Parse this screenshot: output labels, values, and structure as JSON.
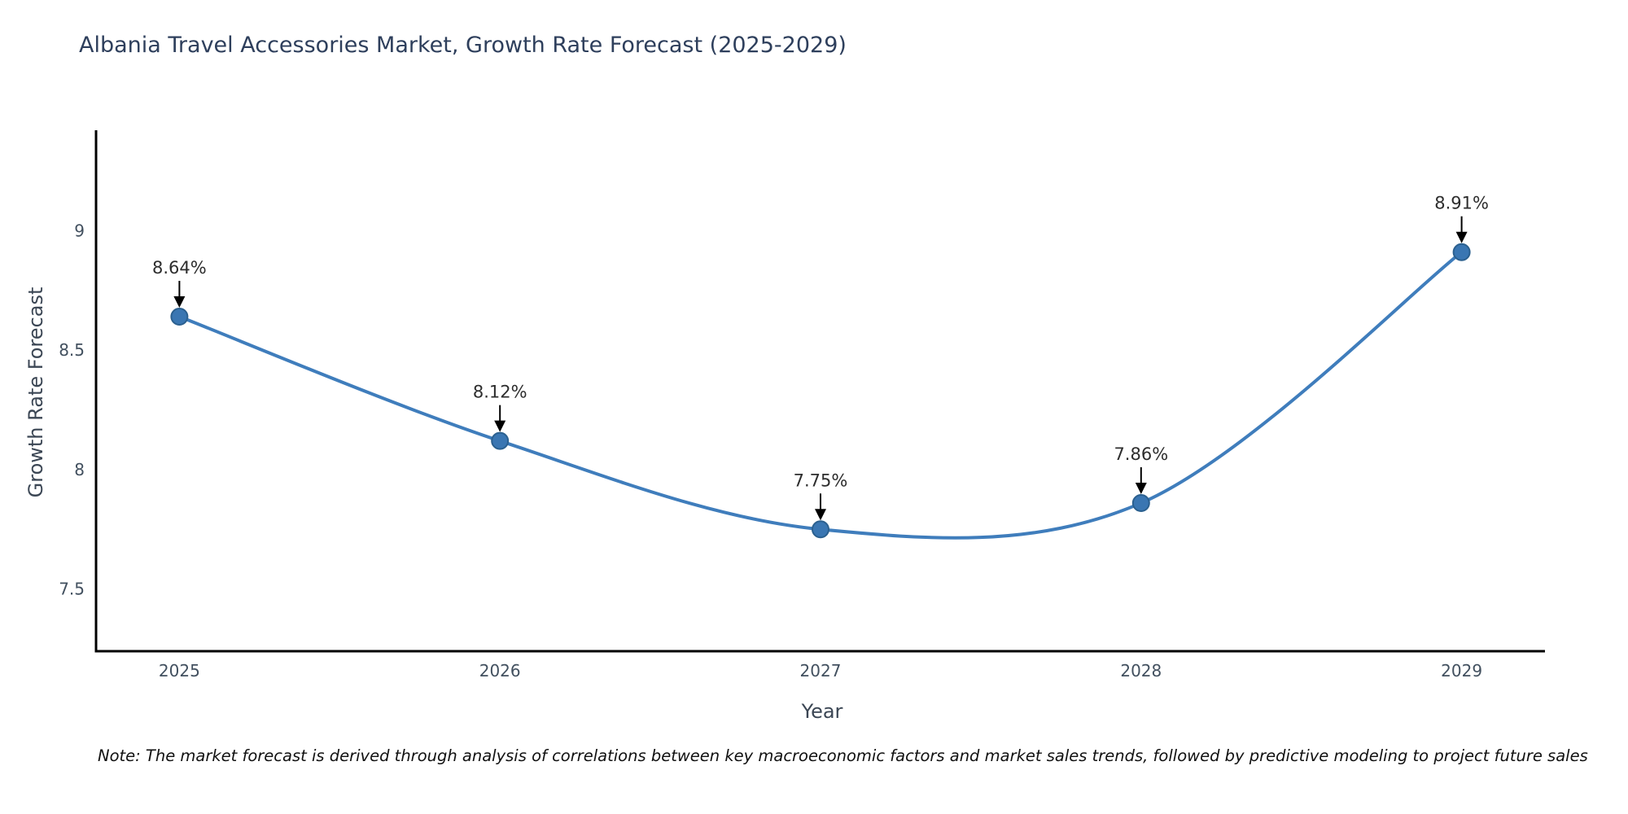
{
  "title": "Albania Travel Accessories Market, Growth Rate Forecast (2025-2029)",
  "note": "Note: The market forecast is derived through analysis of correlations between key macroeconomic factors and market sales trends, followed by predictive modeling to project future sales",
  "chart_data": {
    "type": "line",
    "curve": "spline",
    "title": "Albania Travel Accessories Market, Growth Rate Forecast (2025-2029)",
    "xlabel": "Year",
    "ylabel": "Growth Rate Forecast",
    "x": [
      2025,
      2026,
      2027,
      2028,
      2029
    ],
    "values": [
      8.64,
      8.12,
      7.75,
      7.86,
      8.91
    ],
    "point_labels": [
      "8.64%",
      "8.12%",
      "7.75%",
      "7.86%",
      "8.91%"
    ],
    "xtick_labels": [
      "2025",
      "2026",
      "2027",
      "2028",
      "2029"
    ],
    "yticks": [
      7.5,
      8,
      8.5,
      9
    ],
    "ytick_labels": [
      "7.5",
      "8",
      "8.5",
      "9"
    ],
    "xlim": [
      2024.74,
      2029.26
    ],
    "ylim": [
      7.24,
      9.42
    ],
    "grid": false,
    "legend": "none",
    "colors": {
      "line": "#3f7dbc",
      "marker_fill": "#3a76b2",
      "marker_edge": "#2b608f",
      "axis": "#000000",
      "annotation_text": "#2d2d2d",
      "annotation_arrow": "#000000",
      "tick_text": "#42505f",
      "title_text": "#2e3f5c"
    }
  }
}
